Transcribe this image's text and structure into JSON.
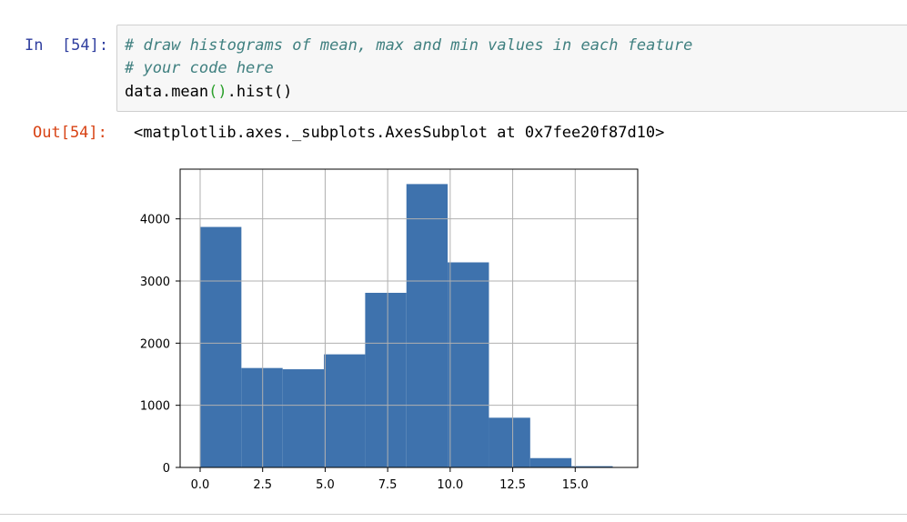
{
  "cell": {
    "in_prompt": "In  [54]:",
    "out_prompt": "Out[54]:",
    "code": {
      "comment1": "# draw histograms of mean, max and min values in each feature",
      "comment2": "# your code here",
      "line3": {
        "obj": "data.",
        "fn1": "mean",
        "open1": "(",
        "close1": ")",
        "dot": ".",
        "fn2": "hist",
        "parens2": "()"
      }
    },
    "output_text": "<matplotlib.axes._subplots.AxesSubplot at 0x7fee20f87d10>"
  },
  "chart_data": {
    "type": "bar",
    "title": "",
    "xlabel": "",
    "ylabel": "",
    "grid": true,
    "bar_color": "#3e72ad",
    "xlim": [
      -0.8,
      17.5
    ],
    "ylim": [
      0,
      4800
    ],
    "bins": [
      {
        "x0": 0.0,
        "x1": 1.65,
        "value": 3870
      },
      {
        "x0": 1.65,
        "x1": 3.3,
        "value": 1600
      },
      {
        "x0": 3.3,
        "x1": 4.95,
        "value": 1580
      },
      {
        "x0": 4.95,
        "x1": 6.6,
        "value": 1820
      },
      {
        "x0": 6.6,
        "x1": 8.25,
        "value": 2810
      },
      {
        "x0": 8.25,
        "x1": 9.9,
        "value": 4560
      },
      {
        "x0": 9.9,
        "x1": 11.55,
        "value": 3300
      },
      {
        "x0": 11.55,
        "x1": 13.2,
        "value": 800
      },
      {
        "x0": 13.2,
        "x1": 14.85,
        "value": 150
      },
      {
        "x0": 14.85,
        "x1": 16.5,
        "value": 20
      }
    ],
    "xticks": [
      0.0,
      2.5,
      5.0,
      7.5,
      10.0,
      12.5,
      15.0
    ],
    "xtick_labels": [
      "0.0",
      "2.5",
      "5.0",
      "7.5",
      "10.0",
      "12.5",
      "15.0"
    ],
    "yticks": [
      0,
      1000,
      2000,
      3000,
      4000
    ],
    "ytick_labels": [
      "0",
      "1000",
      "2000",
      "3000",
      "4000"
    ]
  }
}
